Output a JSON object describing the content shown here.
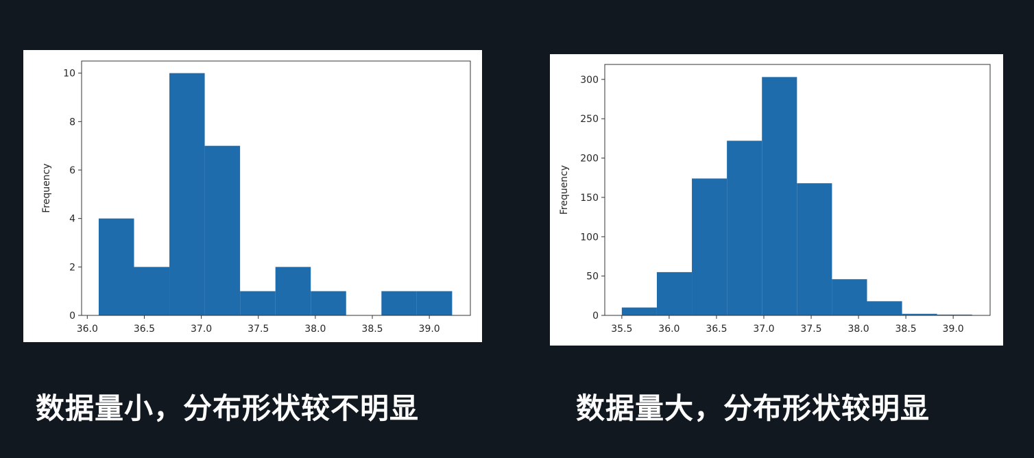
{
  "captions": {
    "left": "数据量小，分布形状较不明显",
    "right": "数据量大，分布形状较明显"
  },
  "colors": {
    "background": "#111820",
    "bar": "#1f6cad",
    "caption": "#ffffff"
  },
  "chart_data": [
    {
      "type": "bar",
      "title": "",
      "xlabel": "",
      "ylabel": "Frequency",
      "bin_edges": [
        36.1,
        36.41,
        36.72,
        37.03,
        37.34,
        37.65,
        37.96,
        38.27,
        38.58,
        38.89,
        39.2
      ],
      "values": [
        4,
        2,
        10,
        7,
        1,
        2,
        1,
        0,
        1,
        1
      ],
      "xlim": [
        35.95,
        39.36
      ],
      "ylim": [
        0,
        10.5
      ],
      "xticks": [
        36.0,
        36.5,
        37.0,
        37.5,
        38.0,
        38.5,
        39.0
      ],
      "xtick_labels": [
        "36.0",
        "36.5",
        "37.0",
        "37.5",
        "38.0",
        "38.5",
        "39.0"
      ],
      "yticks": [
        0,
        2,
        4,
        6,
        8,
        10
      ],
      "ytick_labels": [
        "0",
        "2",
        "4",
        "6",
        "8",
        "10"
      ],
      "grid": false
    },
    {
      "type": "bar",
      "title": "",
      "xlabel": "",
      "ylabel": "Frequency",
      "bin_edges": [
        35.5,
        35.87,
        36.24,
        36.61,
        36.98,
        37.35,
        37.72,
        38.09,
        38.46,
        38.83,
        39.2
      ],
      "values": [
        10,
        55,
        174,
        222,
        303,
        168,
        46,
        18,
        2,
        1
      ],
      "xlim": [
        35.32,
        39.39
      ],
      "ylim": [
        0,
        319
      ],
      "xticks": [
        35.5,
        36.0,
        36.5,
        37.0,
        37.5,
        38.0,
        38.5,
        39.0
      ],
      "xtick_labels": [
        "35.5",
        "36.0",
        "36.5",
        "37.0",
        "37.5",
        "38.0",
        "38.5",
        "39.0"
      ],
      "yticks": [
        0,
        50,
        100,
        150,
        200,
        250,
        300
      ],
      "ytick_labels": [
        "0",
        "50",
        "100",
        "150",
        "200",
        "250",
        "300"
      ],
      "grid": false
    }
  ]
}
